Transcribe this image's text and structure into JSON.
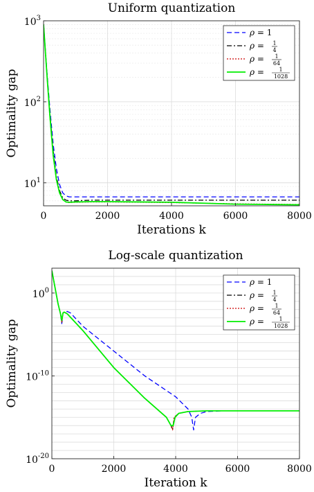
{
  "chart_data": [
    {
      "type": "line",
      "title": "Uniform quantization",
      "xlabel": "Iterations k",
      "ylabel": "Optimality gap",
      "xlim": [
        0,
        8000
      ],
      "ylim": [
        5.2,
        1000
      ],
      "yscale": "log",
      "grid": true,
      "legend_position": "top-right",
      "xticks": [
        0,
        2000,
        4000,
        6000,
        8000
      ],
      "xtick_labels": [
        "0",
        "2000",
        "4000",
        "6000",
        "8000"
      ],
      "ytick_values": [
        10,
        100,
        1000
      ],
      "ytick_labels": [
        [
          "10",
          "1"
        ],
        [
          "10",
          "2"
        ],
        [
          "10",
          "3"
        ]
      ],
      "series": [
        {
          "name": "ρ = 1",
          "legend": {
            "rho": "ρ",
            "eq": " = 1"
          },
          "color": "#0000ff",
          "dash": "7,4",
          "x": [
            0,
            100,
            200,
            300,
            400,
            500,
            600,
            700,
            800,
            1000,
            1500,
            2000,
            4000,
            6000,
            8000
          ],
          "y": [
            900,
            250,
            80,
            30,
            15,
            9.5,
            7.5,
            6.9,
            6.7,
            6.7,
            6.7,
            6.7,
            6.7,
            6.7,
            6.7
          ]
        },
        {
          "name": "ρ = 1/4",
          "legend": {
            "rho": "ρ",
            "eq": " = ",
            "num": "1",
            "den": "4"
          },
          "color": "#000000",
          "dash": "7,3,2,3",
          "x": [
            0,
            100,
            200,
            300,
            400,
            500,
            600,
            700,
            800,
            1000,
            1500,
            2000,
            4000,
            6000,
            8000
          ],
          "y": [
            900,
            240,
            70,
            25,
            12,
            8,
            6.5,
            6.1,
            6.0,
            6.0,
            6.1,
            6.1,
            6.1,
            6.1,
            6.1
          ]
        },
        {
          "name": "ρ = 1/64",
          "legend": {
            "rho": "ρ",
            "eq": " = ",
            "num": "1",
            "den": "64"
          },
          "color": "#cc0000",
          "dash": "2,2",
          "x": [
            0,
            100,
            200,
            300,
            400,
            500,
            600,
            700,
            800,
            1000,
            1500,
            2000,
            4000,
            6000,
            8000
          ],
          "y": [
            900,
            230,
            65,
            22,
            11,
            7.5,
            6.2,
            5.8,
            5.7,
            5.75,
            5.8,
            5.8,
            5.7,
            5.5,
            5.4
          ]
        },
        {
          "name": "ρ = 1/1028",
          "legend": {
            "rho": "ρ",
            "eq": " = ",
            "num": "1",
            "den": "1028"
          },
          "color": "#00ee00",
          "dash": "",
          "x": [
            0,
            100,
            200,
            300,
            400,
            500,
            600,
            700,
            800,
            1000,
            1500,
            2000,
            3000,
            4000,
            5000,
            6000,
            7000,
            8000
          ],
          "y": [
            900,
            230,
            65,
            22,
            11,
            7.5,
            6.2,
            5.8,
            5.75,
            5.8,
            5.85,
            5.85,
            5.8,
            5.75,
            5.6,
            5.45,
            5.4,
            5.35
          ]
        }
      ]
    },
    {
      "type": "line",
      "title": "Log-scale quantization",
      "xlabel": "Iteration k",
      "ylabel": "Optimality gap",
      "xlim": [
        0,
        8000
      ],
      "ylim": [
        1e-20,
        1000
      ],
      "yscale": "log",
      "grid": true,
      "legend_position": "top-right",
      "xticks": [
        0,
        2000,
        4000,
        6000,
        8000
      ],
      "xtick_labels": [
        "0",
        "2000",
        "4000",
        "6000",
        "8000"
      ],
      "ytick_values": [
        1,
        1e-10,
        1e-20
      ],
      "ytick_labels": [
        [
          "10",
          "0"
        ],
        [
          "10",
          "-10"
        ],
        [
          "10",
          "-20"
        ]
      ],
      "series": [
        {
          "name": "ρ = 1",
          "legend": {
            "rho": "ρ",
            "eq": " = 1"
          },
          "color": "#0000ff",
          "dash": "7,4",
          "x": [
            0,
            100,
            200,
            280,
            320,
            360,
            400,
            500,
            600,
            1000,
            2000,
            3000,
            4000,
            4400,
            4520,
            4580,
            4640,
            4800,
            5000,
            5500,
            6000,
            8000
          ],
          "y": [
            500,
            5,
            0.05,
            0.003,
            0.0002,
            0.004,
            0.005,
            0.006,
            0.004,
            0.0001,
            1e-07,
            1e-10,
            3e-13,
            1e-14,
            1e-15,
            3e-17,
            1e-15,
            3e-15,
            5e-15,
            6e-15,
            6e-15,
            6e-15
          ]
        },
        {
          "name": "ρ = 1/4",
          "legend": {
            "rho": "ρ",
            "eq": " = ",
            "num": "1",
            "den": "4"
          },
          "color": "#000000",
          "dash": "7,3,2,3",
          "x": [
            0,
            100,
            200,
            280,
            320,
            360,
            400,
            500,
            1000,
            2000,
            3000,
            3700,
            3850,
            3900,
            3950,
            4100,
            4400,
            5000,
            6000,
            8000
          ],
          "y": [
            500,
            5,
            0.05,
            0.003,
            0.0003,
            0.004,
            0.005,
            0.003,
            3e-05,
            1e-09,
            2e-13,
            1e-15,
            1e-16,
            3e-17,
            1e-15,
            3e-15,
            5e-15,
            6e-15,
            6e-15,
            6e-15
          ]
        },
        {
          "name": "ρ = 1/64",
          "legend": {
            "rho": "ρ",
            "eq": " = ",
            "num": "1",
            "den": "64"
          },
          "color": "#cc0000",
          "dash": "2,2",
          "x": [
            0,
            100,
            200,
            280,
            320,
            360,
            400,
            500,
            1000,
            2000,
            3000,
            3700,
            3850,
            3900,
            3950,
            4100,
            4400,
            5000,
            6000,
            8000
          ],
          "y": [
            500,
            5,
            0.05,
            0.003,
            0.0003,
            0.004,
            0.005,
            0.003,
            3e-05,
            1e-09,
            2e-13,
            1e-15,
            1e-16,
            3e-17,
            1e-15,
            3e-15,
            5e-15,
            6e-15,
            6e-15,
            6e-15
          ]
        },
        {
          "name": "ρ = 1/1028",
          "legend": {
            "rho": "ρ",
            "eq": " = ",
            "num": "1",
            "den": "1028"
          },
          "color": "#00ee00",
          "dash": "",
          "x": [
            0,
            100,
            200,
            280,
            320,
            360,
            400,
            500,
            1000,
            2000,
            3000,
            3700,
            3850,
            3920,
            3980,
            4100,
            4400,
            5000,
            6000,
            8000
          ],
          "y": [
            500,
            5,
            0.05,
            0.003,
            0.0005,
            0.004,
            0.005,
            0.003,
            3e-05,
            1e-09,
            2e-13,
            1e-15,
            1e-16,
            1e-16,
            1e-15,
            3e-15,
            5e-15,
            6e-15,
            6e-15,
            6e-15
          ]
        }
      ]
    }
  ]
}
